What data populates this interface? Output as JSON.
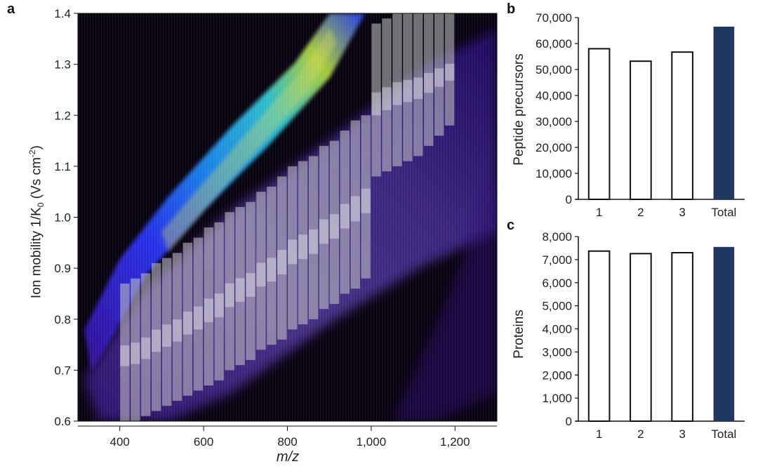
{
  "panels": {
    "a": {
      "label": "a"
    },
    "b": {
      "label": "b"
    },
    "c": {
      "label": "c"
    }
  },
  "colors": {
    "heatmap_bg": "#07010f",
    "bar_outline": "#111111",
    "bar_open_fill": "#ffffff",
    "bar_total_fill": "#203860",
    "window_fill": "#c8c8c8"
  },
  "chart_data": [
    {
      "id": "a",
      "type": "heatmap",
      "title": "",
      "xlabel": "m/z",
      "ylabel": "Ion mobility 1/K0 (Vs cm-2)",
      "ylabel_parts": {
        "main": "Ion mobility 1/K",
        "sub": "0",
        "unit_open": " (Vs cm",
        "sup": "-2",
        "unit_close": ")"
      },
      "xlim": [
        300,
        1300
      ],
      "ylim": [
        0.6,
        1.4
      ],
      "x_ticks": [
        "400",
        "600",
        "800",
        "1,000",
        "1,200"
      ],
      "x_tick_values": [
        400,
        600,
        800,
        1000,
        1200
      ],
      "y_ticks": [
        "0.6",
        "0.7",
        "0.8",
        "0.9",
        "1.0",
        "1.1",
        "1.2",
        "1.3",
        "1.4"
      ],
      "y_tick_values": [
        0.6,
        0.7,
        0.8,
        0.9,
        1.0,
        1.1,
        1.2,
        1.3,
        1.4
      ],
      "grid": false,
      "annotations": "Two diagonal precursor ion clouds (upper: multiply charged, high intensity; lower: broad). Overlay of grey diaPASEF isolation windows stepping from m/z 400 to 1200 (25 Th wide) following the lower ion cloud, each window spanning ~0.25–0.3 1/K0.",
      "windows": [
        {
          "mz_start": 400,
          "mz_end": 425,
          "im_low": 0.6,
          "im_high": 0.87
        },
        {
          "mz_start": 425,
          "mz_end": 450,
          "im_low": 0.6,
          "im_high": 0.88
        },
        {
          "mz_start": 450,
          "mz_end": 475,
          "im_low": 0.61,
          "im_high": 0.89
        },
        {
          "mz_start": 475,
          "mz_end": 500,
          "im_low": 0.62,
          "im_high": 0.91
        },
        {
          "mz_start": 500,
          "mz_end": 525,
          "im_low": 0.63,
          "im_high": 0.92
        },
        {
          "mz_start": 525,
          "mz_end": 550,
          "im_low": 0.64,
          "im_high": 0.93
        },
        {
          "mz_start": 550,
          "mz_end": 575,
          "im_low": 0.65,
          "im_high": 0.95
        },
        {
          "mz_start": 575,
          "mz_end": 600,
          "im_low": 0.66,
          "im_high": 0.96
        },
        {
          "mz_start": 600,
          "mz_end": 625,
          "im_low": 0.67,
          "im_high": 0.98
        },
        {
          "mz_start": 625,
          "mz_end": 650,
          "im_low": 0.68,
          "im_high": 0.99
        },
        {
          "mz_start": 650,
          "mz_end": 675,
          "im_low": 0.7,
          "im_high": 1.01
        },
        {
          "mz_start": 675,
          "mz_end": 700,
          "im_low": 0.71,
          "im_high": 1.02
        },
        {
          "mz_start": 700,
          "mz_end": 725,
          "im_low": 0.72,
          "im_high": 1.03
        },
        {
          "mz_start": 725,
          "mz_end": 750,
          "im_low": 0.74,
          "im_high": 1.05
        },
        {
          "mz_start": 750,
          "mz_end": 775,
          "im_low": 0.75,
          "im_high": 1.06
        },
        {
          "mz_start": 775,
          "mz_end": 800,
          "im_low": 0.76,
          "im_high": 1.08
        },
        {
          "mz_start": 800,
          "mz_end": 825,
          "im_low": 0.78,
          "im_high": 1.1
        },
        {
          "mz_start": 825,
          "mz_end": 850,
          "im_low": 0.79,
          "im_high": 1.11
        },
        {
          "mz_start": 850,
          "mz_end": 875,
          "im_low": 0.8,
          "im_high": 1.12
        },
        {
          "mz_start": 875,
          "mz_end": 900,
          "im_low": 0.82,
          "im_high": 1.14
        },
        {
          "mz_start": 900,
          "mz_end": 925,
          "im_low": 0.83,
          "im_high": 1.15
        },
        {
          "mz_start": 925,
          "mz_end": 950,
          "im_low": 0.85,
          "im_high": 1.17
        },
        {
          "mz_start": 950,
          "mz_end": 975,
          "im_low": 0.86,
          "im_high": 1.19
        },
        {
          "mz_start": 975,
          "mz_end": 1000,
          "im_low": 0.88,
          "im_high": 1.2
        },
        {
          "mz_start": 1000,
          "mz_end": 1025,
          "im_low": 1.08,
          "im_high": 1.38
        },
        {
          "mz_start": 1025,
          "mz_end": 1050,
          "im_low": 1.09,
          "im_high": 1.39
        },
        {
          "mz_start": 1050,
          "mz_end": 1075,
          "im_low": 1.1,
          "im_high": 1.4
        },
        {
          "mz_start": 1075,
          "mz_end": 1100,
          "im_low": 1.11,
          "im_high": 1.4
        },
        {
          "mz_start": 1100,
          "mz_end": 1125,
          "im_low": 1.12,
          "im_high": 1.4
        },
        {
          "mz_start": 1125,
          "mz_end": 1150,
          "im_low": 1.14,
          "im_high": 1.4
        },
        {
          "mz_start": 1150,
          "mz_end": 1175,
          "im_low": 1.16,
          "im_high": 1.4
        },
        {
          "mz_start": 1175,
          "mz_end": 1200,
          "im_low": 1.18,
          "im_high": 1.4
        }
      ]
    },
    {
      "id": "b",
      "type": "bar",
      "title": "",
      "xlabel": "",
      "ylabel": "Peptide precursors",
      "categories": [
        "1",
        "2",
        "3",
        "Total"
      ],
      "values": [
        58000,
        53200,
        56700,
        66500
      ],
      "ylim": [
        0,
        70000
      ],
      "y_ticks": [
        "0",
        "10,000",
        "20,000",
        "30,000",
        "40,000",
        "50,000",
        "60,000",
        "70,000"
      ],
      "y_tick_values": [
        0,
        10000,
        20000,
        30000,
        40000,
        50000,
        60000,
        70000
      ],
      "grid": false,
      "legend": null
    },
    {
      "id": "c",
      "type": "bar",
      "title": "",
      "xlabel": "",
      "ylabel": "Proteins",
      "categories": [
        "1",
        "2",
        "3",
        "Total"
      ],
      "values": [
        7370,
        7260,
        7300,
        7550
      ],
      "ylim": [
        0,
        8000
      ],
      "y_ticks": [
        "0",
        "1,000",
        "2,000",
        "3,000",
        "4,000",
        "5,000",
        "6,000",
        "7,000",
        "8,000"
      ],
      "y_tick_values": [
        0,
        1000,
        2000,
        3000,
        4000,
        5000,
        6000,
        7000,
        8000
      ],
      "grid": false,
      "legend": null
    }
  ]
}
